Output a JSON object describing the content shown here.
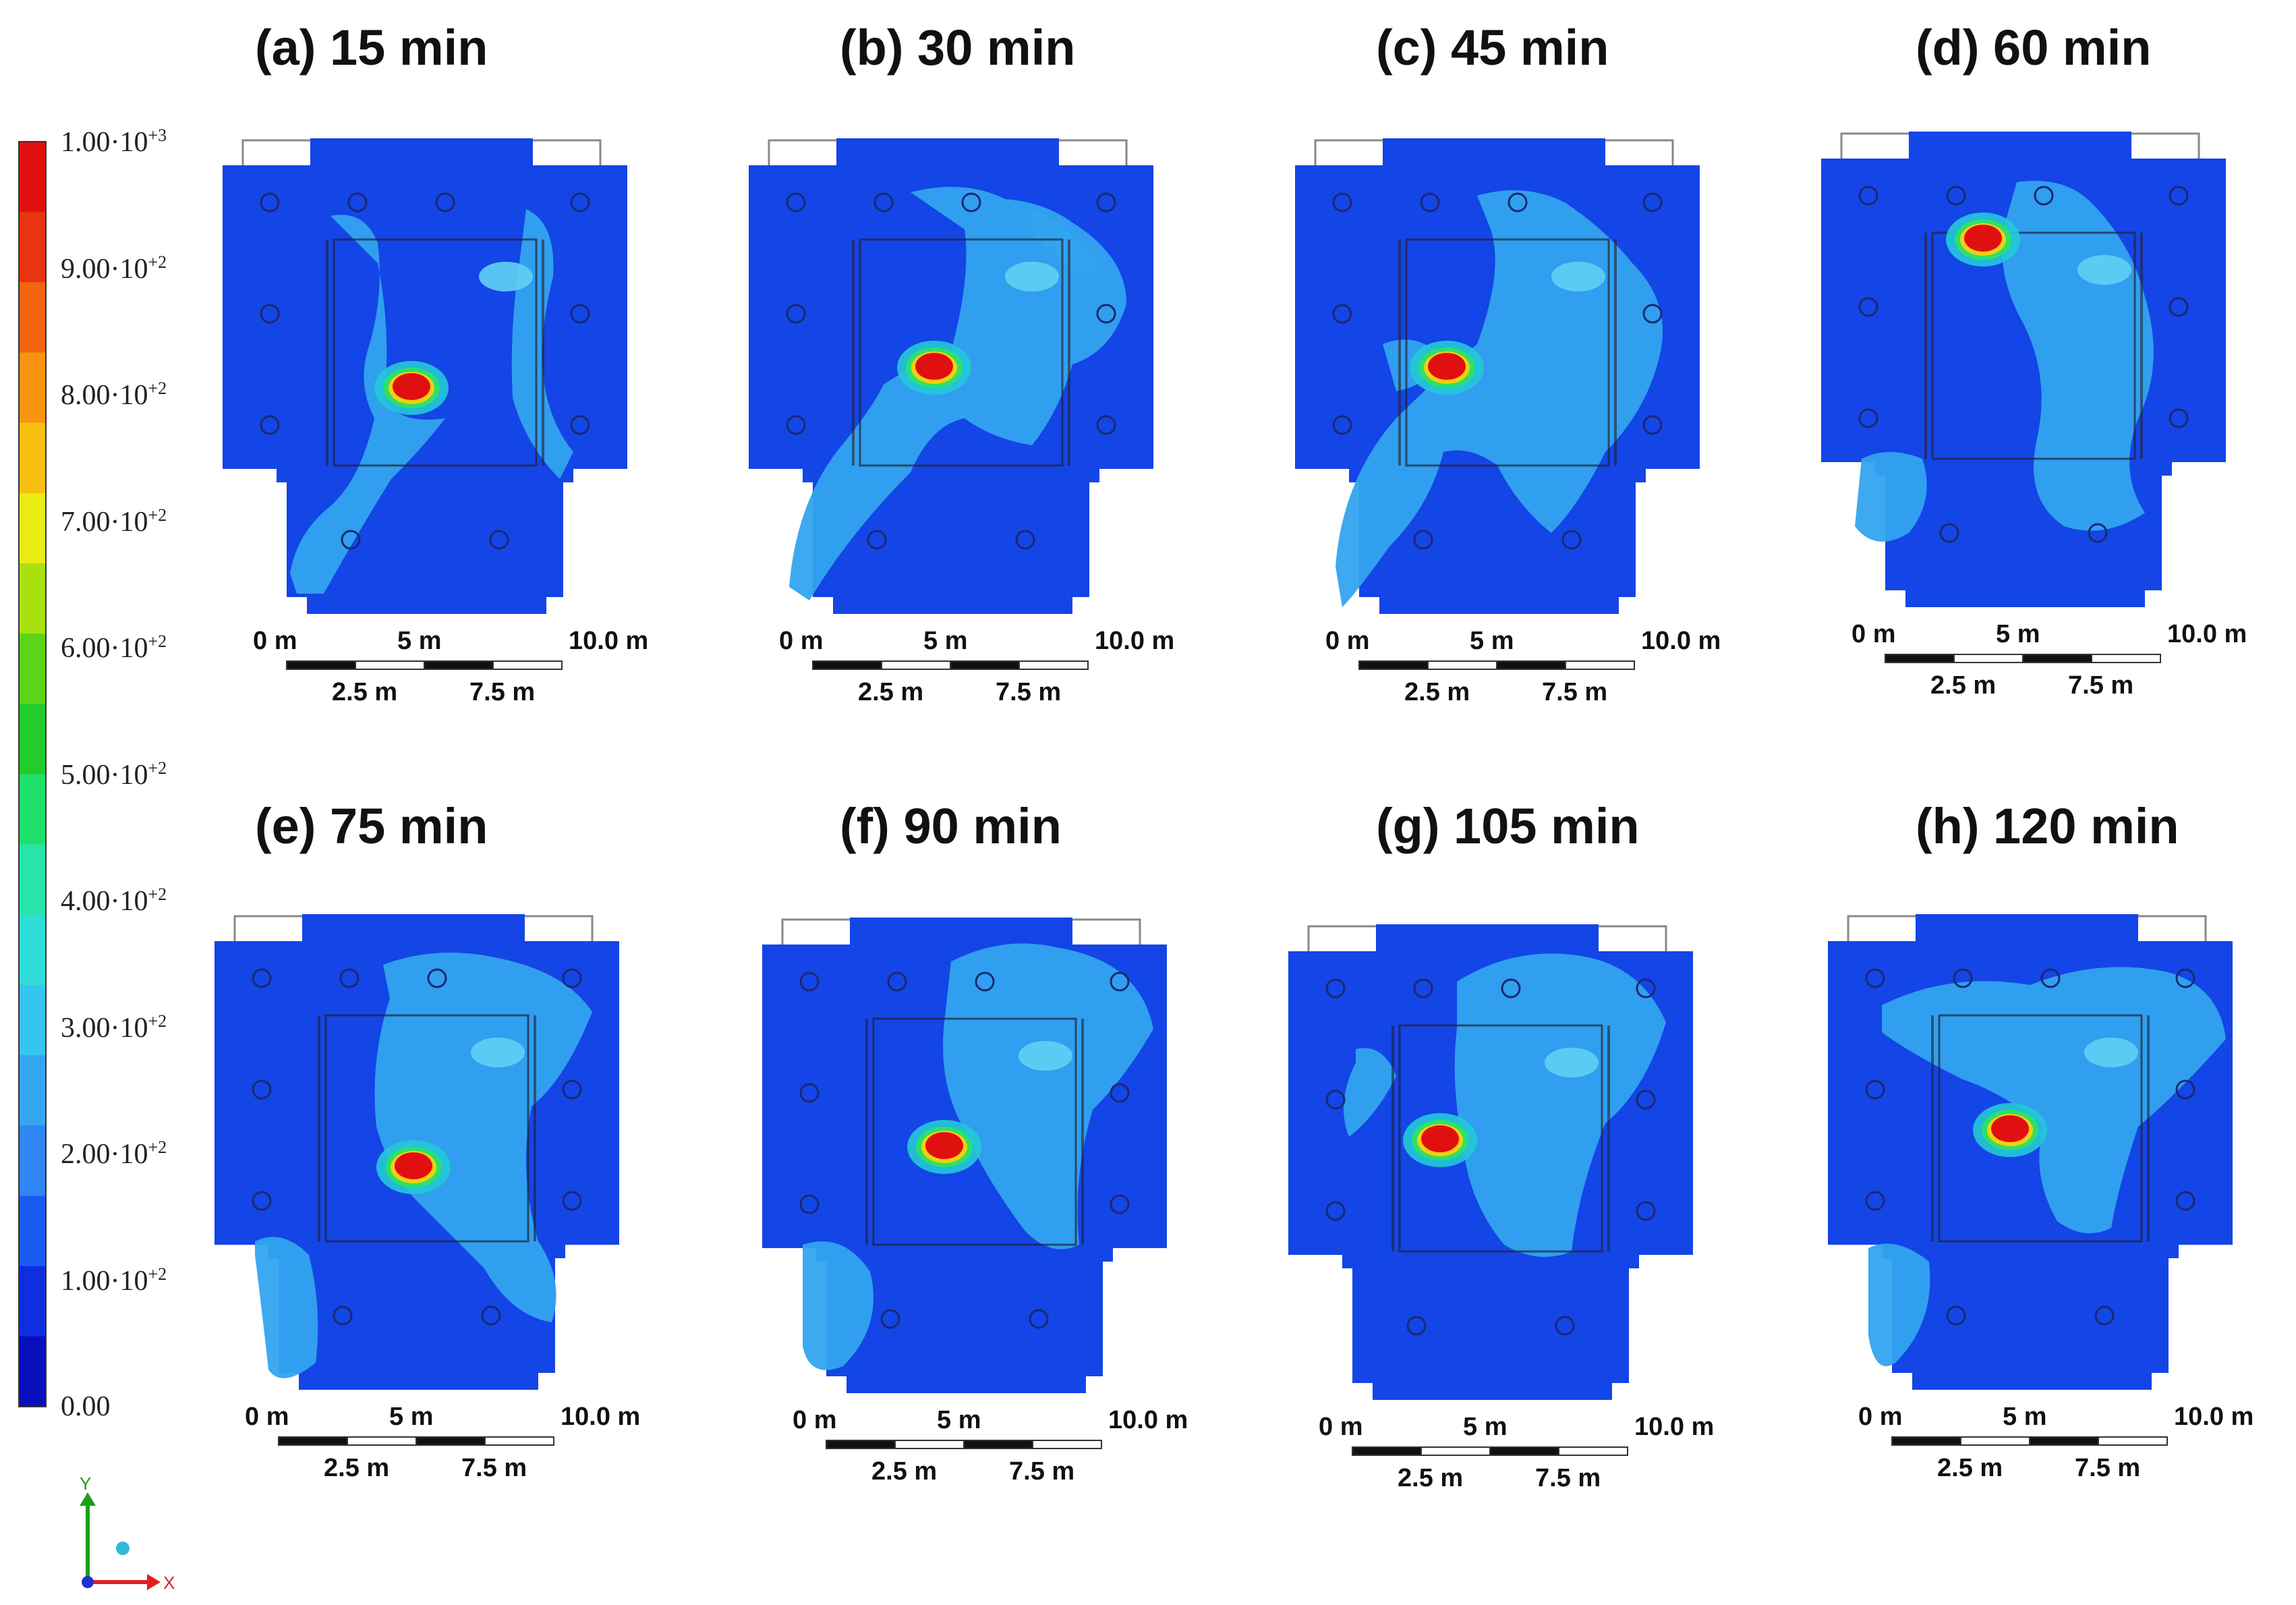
{
  "colorbar": {
    "labels": [
      {
        "value": 1000,
        "base": "1.00·10",
        "exp": "+3"
      },
      {
        "value": 900,
        "base": "9.00·10",
        "exp": "+2"
      },
      {
        "value": 800,
        "base": "8.00·10",
        "exp": "+2"
      },
      {
        "value": 700,
        "base": "7.00·10",
        "exp": "+2"
      },
      {
        "value": 600,
        "base": "6.00·10",
        "exp": "+2"
      },
      {
        "value": 500,
        "base": "5.00·10",
        "exp": "+2"
      },
      {
        "value": 400,
        "base": "4.00·10",
        "exp": "+2"
      },
      {
        "value": 300,
        "base": "3.00·10",
        "exp": "+2"
      },
      {
        "value": 200,
        "base": "2.00·10",
        "exp": "+2"
      },
      {
        "value": 100,
        "base": "1.00·10",
        "exp": "+2"
      },
      {
        "value": 0,
        "base": "0.00",
        "exp": ""
      }
    ],
    "colors": [
      "#0a0fbe",
      "#0f2ee0",
      "#1c5bf2",
      "#2f86f4",
      "#34a6f0",
      "#36c4f0",
      "#2fdcd8",
      "#25e6a8",
      "#1fe06a",
      "#22cc2a",
      "#5ed418",
      "#a8e010",
      "#e8ec10",
      "#f8c010",
      "#f89410",
      "#f4640e",
      "#e83410",
      "#e01010"
    ]
  },
  "axis_triad": {
    "y": "Y",
    "x": "X"
  },
  "scale_bar": {
    "top": [
      "0 m",
      "5 m",
      "10.0 m"
    ],
    "bottom": [
      "2.5 m",
      "7.5 m"
    ]
  },
  "panels": [
    {
      "title": "(a) 15 min"
    },
    {
      "title": "(b) 30 min"
    },
    {
      "title": "(c) 45 min"
    },
    {
      "title": "(d) 60 min"
    },
    {
      "title": "(e) 75 min"
    },
    {
      "title": "(f) 90 min"
    },
    {
      "title": "(g) 105 min"
    },
    {
      "title": "(h) 120 min"
    }
  ]
}
